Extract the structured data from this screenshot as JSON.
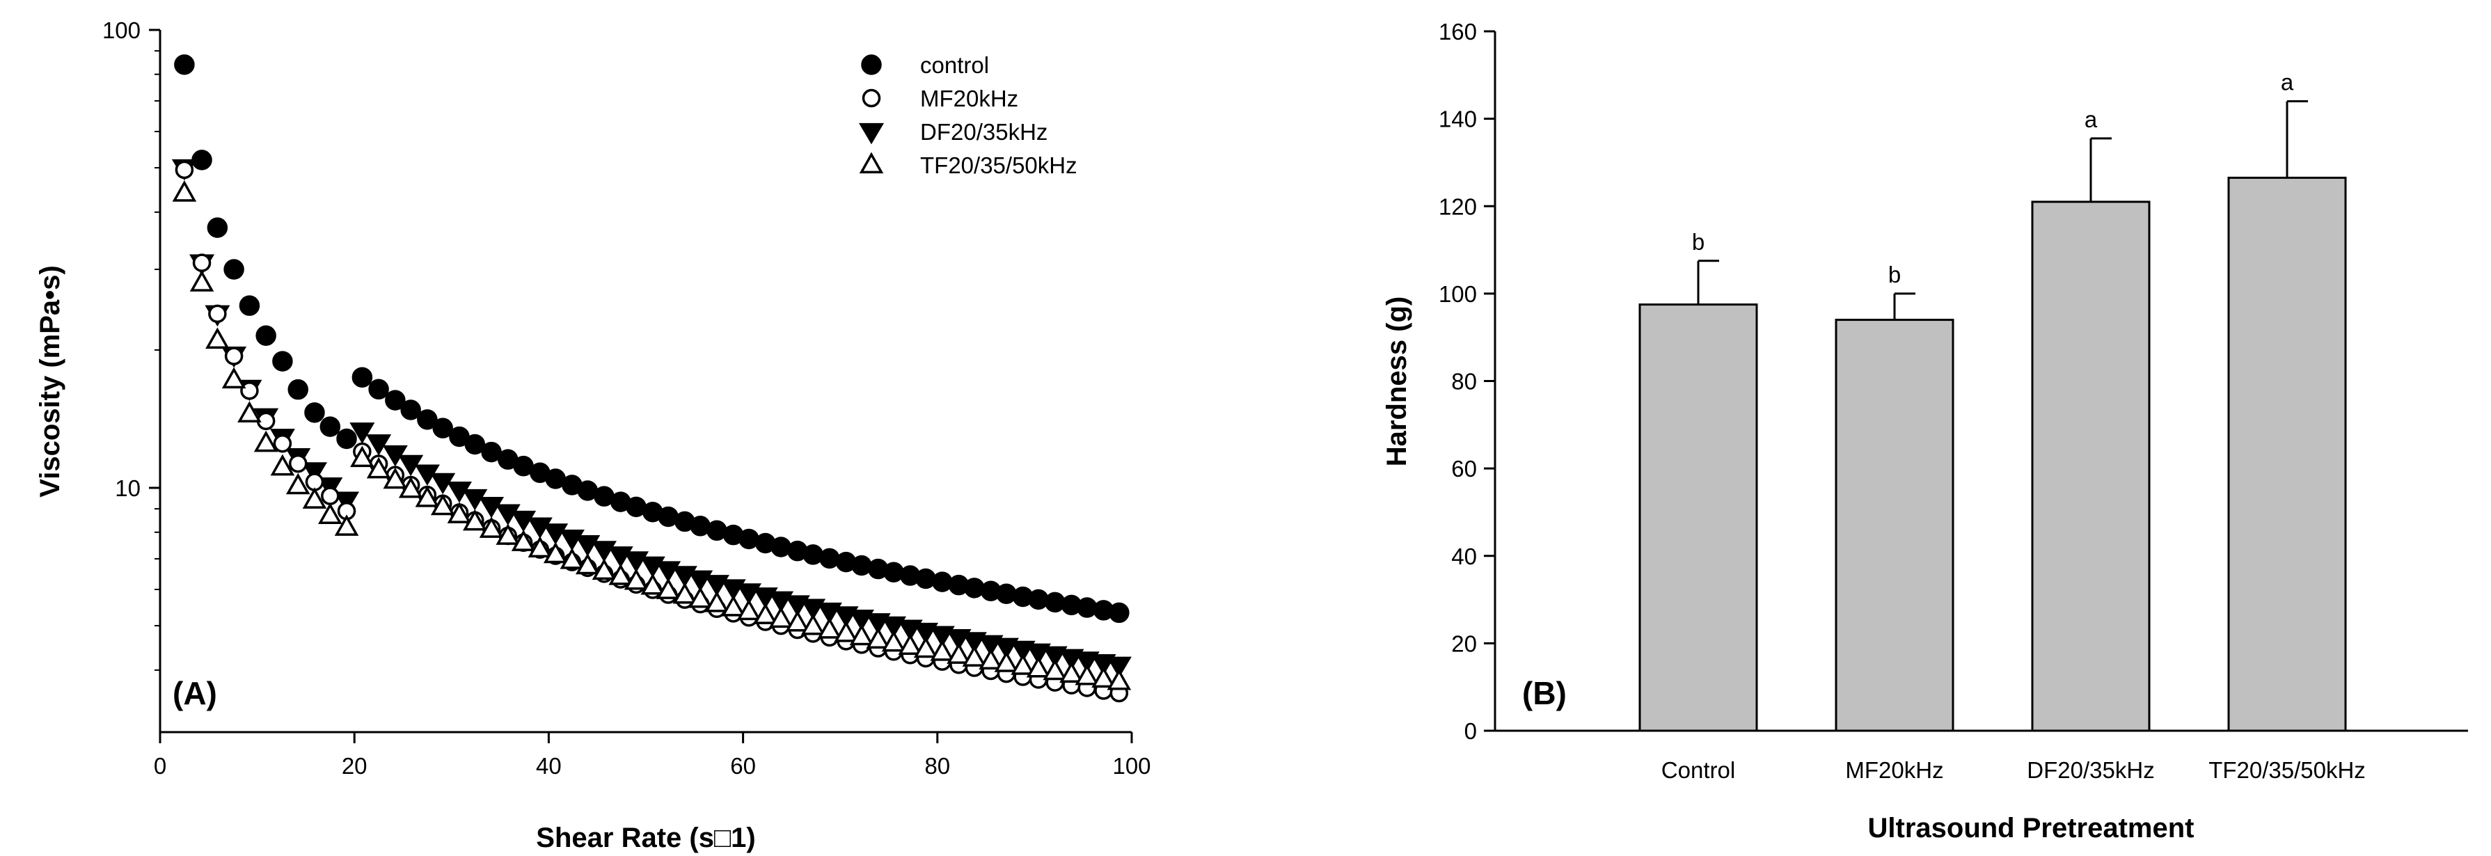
{
  "chart_data": [
    {
      "type": "scatter",
      "panel_label": "(A)",
      "xlabel": "Shear Rate (s□1)",
      "ylabel": "Viscosity (mPa•s)",
      "xlim": [
        0,
        100
      ],
      "ylim": [
        3,
        100
      ],
      "yscale": "log",
      "xticks": [
        0,
        20,
        40,
        60,
        80,
        100
      ],
      "yticks": [
        10,
        100
      ],
      "legend_position": "top-right",
      "series": [
        {
          "name": "control",
          "marker": "filled-circle",
          "a": 175,
          "b": -0.76
        },
        {
          "name": "MF20kHz",
          "marker": "open-circle",
          "a": 128,
          "b": -0.78
        },
        {
          "name": "DF20/35kHz",
          "marker": "filled-triangle-down",
          "a": 132,
          "b": -0.756
        },
        {
          "name": "TF20/35/50kHz",
          "marker": "open-triangle-up",
          "a": 103,
          "b": -0.72
        }
      ],
      "x": [
        2.5,
        4.3,
        5.9,
        7.6,
        9.2,
        10.9,
        12.6,
        14.2,
        15.9,
        17.5,
        19.2,
        20.8,
        22.5,
        24.2,
        25.8,
        27.5,
        29.1,
        30.8,
        32.4,
        34.1,
        35.8,
        37.4,
        39.1,
        40.7,
        42.4,
        44.0,
        45.7,
        47.4,
        49.0,
        50.7,
        52.3,
        54.0,
        55.6,
        57.3,
        59.0,
        60.6,
        62.3,
        63.9,
        65.6,
        67.2,
        68.9,
        70.6,
        72.2,
        73.9,
        75.5,
        77.2,
        78.8,
        80.5,
        82.2,
        83.8,
        85.5,
        87.1,
        88.8,
        90.4,
        92.1,
        93.8,
        95.4,
        97.1,
        98.7
      ],
      "first_points": {
        "control": [
          84,
          52,
          37,
          30,
          25,
          21.5,
          18.9,
          16.4,
          14.6,
          13.6,
          12.8
        ],
        "MF20kHz": [
          49.5,
          31,
          24,
          19.4,
          16.3,
          14,
          12.5,
          11.3,
          10.3,
          9.6,
          8.9
        ],
        "DF20/35kHz": [
          50,
          31,
          24,
          19.5,
          16.5,
          14.3,
          12.9,
          11.7,
          10.9,
          10.1,
          9.4
        ],
        "TF20/35/50kHz": [
          44,
          28,
          21,
          17.2,
          14.5,
          12.5,
          11.1,
          10.1,
          9.4,
          8.7,
          8.2
        ]
      }
    },
    {
      "type": "bar",
      "panel_label": "(B)",
      "xlabel": "Ultrasound Pretreatment",
      "ylabel": "Hardness (g)",
      "ylim": [
        0,
        160
      ],
      "yticks": [
        0,
        20,
        40,
        60,
        80,
        100,
        120,
        140,
        160
      ],
      "categories": [
        "Control",
        "MF20kHz",
        "DF20/35kHz",
        "TF20/35/50kHz"
      ],
      "values": [
        97.5,
        94,
        121,
        126.5
      ],
      "errors": [
        10,
        6,
        14.5,
        17.5
      ],
      "significance": [
        "b",
        "b",
        "a",
        "a"
      ],
      "bar_color": "#c0c0c0"
    }
  ]
}
